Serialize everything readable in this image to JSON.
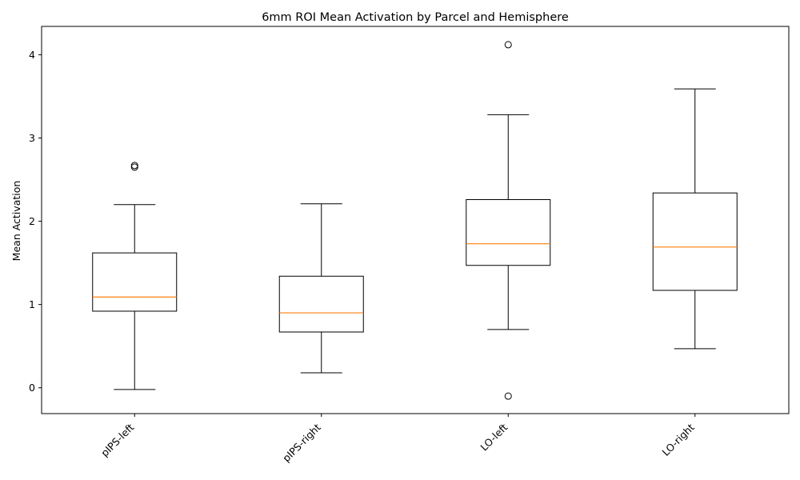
{
  "chart_data": {
    "type": "boxplot",
    "title": "6mm ROI Mean Activation by Parcel and Hemisphere",
    "xlabel": "",
    "ylabel": "Mean Activation",
    "categories": [
      "pIPS-left",
      "pIPS-right",
      "LO-left",
      "LO-right"
    ],
    "boxes": [
      {
        "category": "pIPS-left",
        "whisker_low": -0.02,
        "q1": 0.92,
        "median": 1.09,
        "q3": 1.62,
        "whisker_high": 2.2,
        "outliers": [
          2.65,
          2.67
        ]
      },
      {
        "category": "pIPS-right",
        "whisker_low": 0.18,
        "q1": 0.67,
        "median": 0.9,
        "q3": 1.34,
        "whisker_high": 2.21,
        "outliers": []
      },
      {
        "category": "LO-left",
        "whisker_low": 0.7,
        "q1": 1.47,
        "median": 1.73,
        "q3": 2.26,
        "whisker_high": 3.28,
        "outliers": [
          4.12,
          -0.1
        ]
      },
      {
        "category": "LO-right",
        "whisker_low": 0.47,
        "q1": 1.17,
        "median": 1.69,
        "q3": 2.34,
        "whisker_high": 3.59,
        "outliers": []
      }
    ],
    "ylim": [
      -0.31,
      4.34
    ],
    "yticks": [
      0,
      1,
      2,
      3,
      4
    ],
    "grid": false,
    "colors": {
      "box": "#000000",
      "median": "#ff7f0e",
      "outlier": "#000000"
    }
  }
}
